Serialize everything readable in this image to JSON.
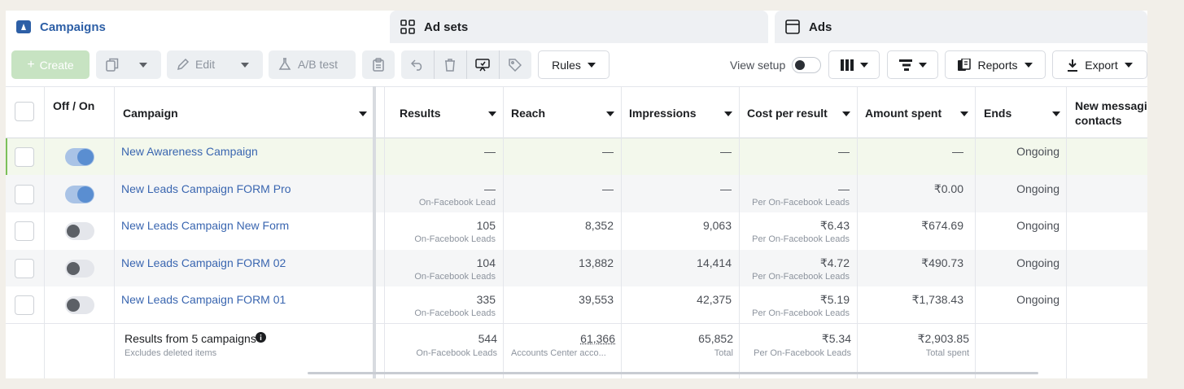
{
  "tabs": {
    "campaigns": "Campaigns",
    "ad_sets": "Ad sets",
    "ads": "Ads"
  },
  "toolbar": {
    "create": "Create",
    "edit": "Edit",
    "ab_test": "A/B test",
    "rules": "Rules",
    "view_setup": "View setup",
    "reports": "Reports",
    "export": "Export"
  },
  "columns": {
    "off_on": "Off / On",
    "campaign": "Campaign",
    "results": "Results",
    "reach": "Reach",
    "impressions": "Impressions",
    "cost_per_result": "Cost per result",
    "amount_spent": "Amount spent",
    "ends": "Ends",
    "new_messaging": "New messagi contacts"
  },
  "rows": [
    {
      "status": "on",
      "name": "New Awareness Campaign",
      "results": "—",
      "results_sub": "",
      "reach": "—",
      "impressions": "—",
      "cost": "—",
      "cost_sub": "",
      "spent": "—",
      "ends": "Ongoing"
    },
    {
      "status": "on",
      "name": "New Leads Campaign FORM Pro",
      "results": "—",
      "results_sub": "On-Facebook Lead",
      "reach": "—",
      "impressions": "—",
      "cost": "—",
      "cost_sub": "Per On-Facebook Leads",
      "spent": "₹0.00",
      "ends": "Ongoing"
    },
    {
      "status": "off",
      "name": "New Leads Campaign New Form",
      "results": "105",
      "results_sub": "On-Facebook Leads",
      "reach": "8,352",
      "impressions": "9,063",
      "cost": "₹6.43",
      "cost_sub": "Per On-Facebook Leads",
      "spent": "₹674.69",
      "ends": "Ongoing"
    },
    {
      "status": "off",
      "name": "New Leads Campaign FORM 02",
      "results": "104",
      "results_sub": "On-Facebook Leads",
      "reach": "13,882",
      "impressions": "14,414",
      "cost": "₹4.72",
      "cost_sub": "Per On-Facebook Leads",
      "spent": "₹490.73",
      "ends": "Ongoing"
    },
    {
      "status": "off",
      "name": "New Leads Campaign FORM 01",
      "results": "335",
      "results_sub": "On-Facebook Leads",
      "reach": "39,553",
      "impressions": "42,375",
      "cost": "₹5.19",
      "cost_sub": "Per On-Facebook Leads",
      "spent": "₹1,738.43",
      "ends": "Ongoing"
    }
  ],
  "summary": {
    "title": "Results from 5 campaigns",
    "subtitle": "Excludes deleted items",
    "results": "544",
    "results_sub": "On-Facebook Leads",
    "reach": "61,366",
    "reach_sub": "Accounts Center acco...",
    "impressions": "65,852",
    "impressions_sub": "Total",
    "cost": "₹5.34",
    "cost_sub": "Per On-Facebook Leads",
    "spent": "₹2,903.85",
    "spent_sub": "Total spent"
  },
  "colors": {
    "link": "#3a66b0",
    "toggle_on": "#5a8ed1",
    "selected_row": "#f3f8ec",
    "stripe_row": "#f5f6f7"
  }
}
